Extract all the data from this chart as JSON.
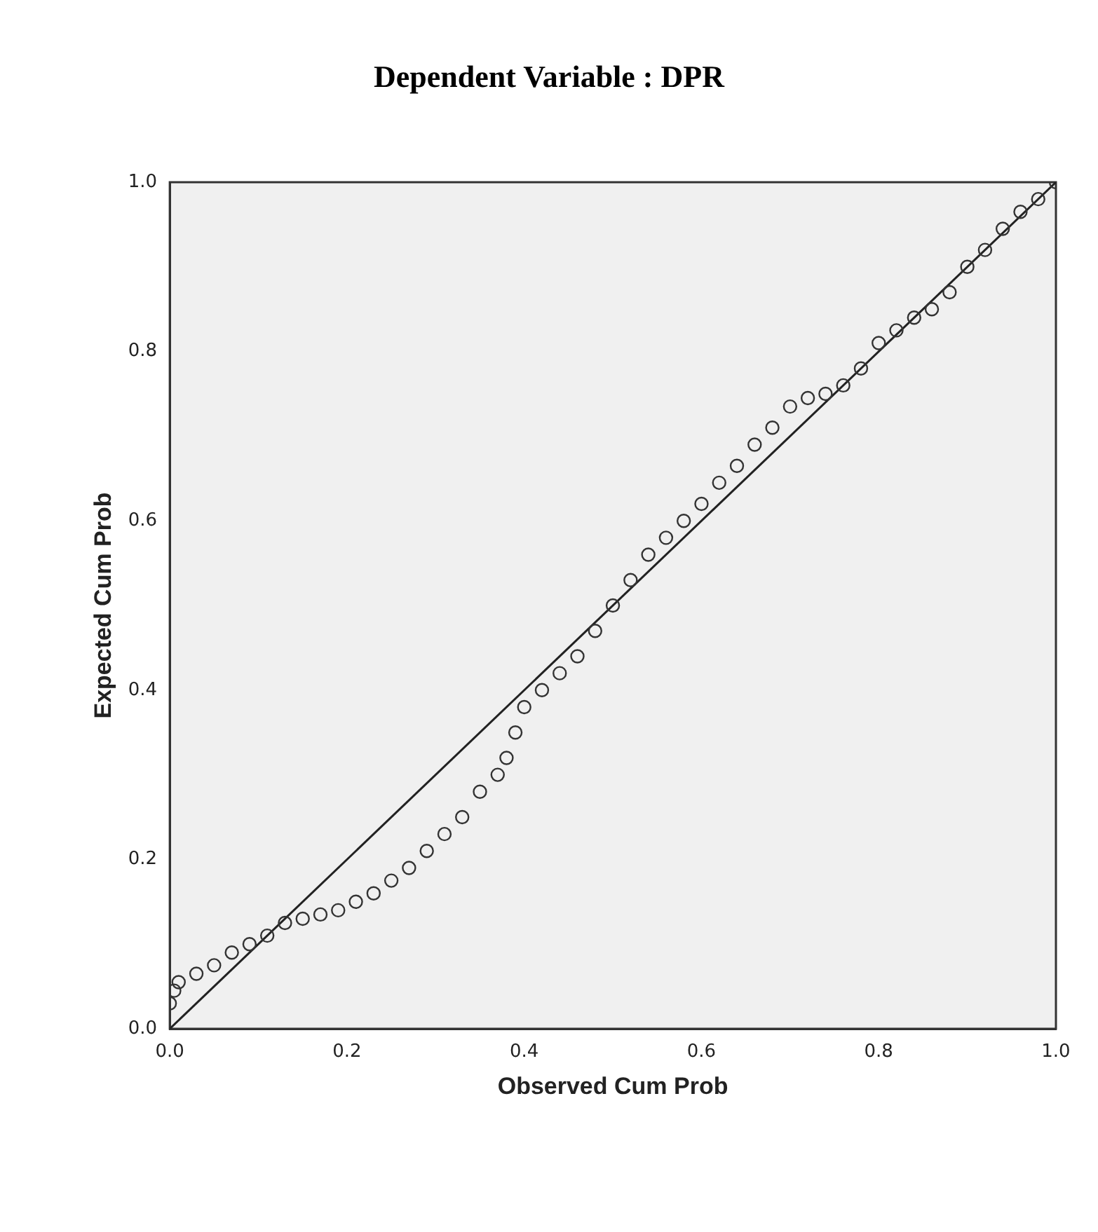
{
  "chart_data": {
    "type": "scatter",
    "title": "Dependent Variable : DPR",
    "xlabel": "Observed Cum Prob",
    "ylabel": "Expected Cum Prob",
    "xlim": [
      0,
      1
    ],
    "ylim": [
      0,
      1
    ],
    "xticks": [
      {
        "value": 0,
        "label": "0.0"
      },
      0.2,
      0.4,
      0.6,
      0.8,
      {
        "value": 1,
        "label": "1.0"
      }
    ],
    "yticks": [
      {
        "value": 0,
        "label": "0.0"
      },
      0.2,
      0.4,
      0.6,
      0.8,
      {
        "value": 1,
        "label": "1.0"
      }
    ],
    "grid": false,
    "legend": false,
    "marker": "circle",
    "series": [
      {
        "color": "#333333",
        "x": [
          0,
          0.005,
          0.01,
          0.03,
          0.05,
          0.07,
          0.09,
          0.11,
          0.13,
          0.15,
          0.17,
          0.19,
          0.21,
          0.23,
          0.25,
          0.27,
          0.29,
          0.31,
          0.33,
          0.35,
          0.37,
          0.38,
          0.39,
          0.4,
          0.42,
          0.44,
          0.46,
          0.48,
          0.5,
          0.52,
          0.54,
          0.56,
          0.58,
          0.6,
          0.62,
          0.64,
          0.66,
          0.68,
          0.7,
          0.72,
          0.74,
          0.76,
          0.78,
          0.8,
          0.82,
          0.84,
          0.86,
          0.88,
          0.9,
          0.92,
          0.94,
          0.96,
          0.98,
          1
        ],
        "values": [
          0.03,
          0.045,
          0.055,
          0.065,
          0.075,
          0.09,
          0.1,
          0.11,
          0.125,
          0.13,
          0.135,
          0.14,
          0.15,
          0.16,
          0.175,
          0.19,
          0.21,
          0.23,
          0.25,
          0.28,
          0.3,
          0.32,
          0.35,
          0.38,
          0.4,
          0.42,
          0.44,
          0.47,
          0.5,
          0.53,
          0.56,
          0.58,
          0.6,
          0.62,
          0.645,
          0.665,
          0.69,
          0.71,
          0.735,
          0.745,
          0.75,
          0.76,
          0.78,
          0.81,
          0.825,
          0.84,
          0.85,
          0.87,
          0.9,
          0.92,
          0.945,
          0.965,
          0.98,
          1
        ]
      },
      {
        "color": "#222222",
        "type": "line",
        "marker": "none",
        "line_style": "solid",
        "x": [
          0,
          1
        ],
        "values": [
          0,
          1
        ]
      }
    ]
  }
}
